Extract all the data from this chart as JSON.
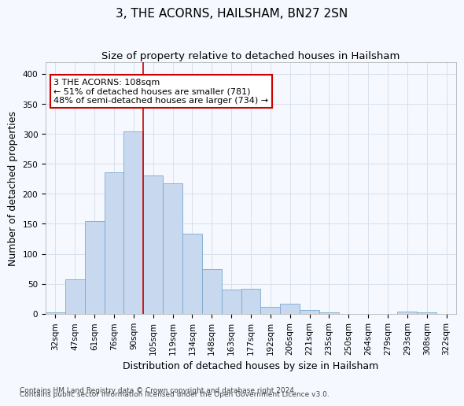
{
  "title": "3, THE ACORNS, HAILSHAM, BN27 2SN",
  "subtitle": "Size of property relative to detached houses in Hailsham",
  "xlabel": "Distribution of detached houses by size in Hailsham",
  "ylabel": "Number of detached properties",
  "categories": [
    "32sqm",
    "47sqm",
    "61sqm",
    "76sqm",
    "90sqm",
    "105sqm",
    "119sqm",
    "134sqm",
    "148sqm",
    "163sqm",
    "177sqm",
    "192sqm",
    "206sqm",
    "221sqm",
    "235sqm",
    "250sqm",
    "264sqm",
    "279sqm",
    "293sqm",
    "308sqm",
    "322sqm"
  ],
  "values": [
    3,
    57,
    155,
    236,
    304,
    230,
    218,
    133,
    75,
    40,
    42,
    11,
    17,
    6,
    3,
    0,
    0,
    0,
    4,
    3,
    0
  ],
  "bar_color": "#c8d8ef",
  "bar_edge_color": "#7aaad0",
  "vline_x": 4.5,
  "annotation_text": "3 THE ACORNS: 108sqm\n← 51% of detached houses are smaller (781)\n48% of semi-detached houses are larger (734) →",
  "annotation_box_color": "#ffffff",
  "annotation_box_edge": "#cc0000",
  "vline_color": "#cc0000",
  "ylim": [
    0,
    420
  ],
  "yticks": [
    0,
    50,
    100,
    150,
    200,
    250,
    300,
    350,
    400
  ],
  "footer1": "Contains HM Land Registry data © Crown copyright and database right 2024.",
  "footer2": "Contains public sector information licensed under the Open Government Licence v3.0.",
  "background_color": "#f5f8fe",
  "grid_color": "#d8e0ec",
  "title_fontsize": 11,
  "subtitle_fontsize": 9.5,
  "axis_label_fontsize": 9,
  "tick_fontsize": 7.5,
  "annotation_fontsize": 8,
  "footer_fontsize": 6.5
}
